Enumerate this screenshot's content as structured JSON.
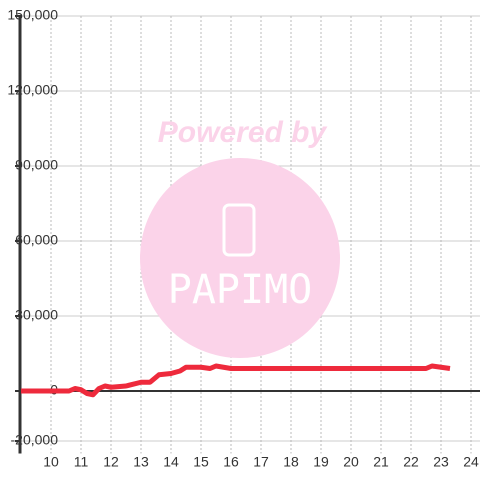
{
  "chart_data": {
    "type": "line",
    "watermark": {
      "text": "Powered by",
      "logo": "PAPIMO"
    },
    "x": [
      9,
      10,
      10.6,
      10.8,
      11,
      11.2,
      11.4,
      11.6,
      11.8,
      12,
      12.5,
      13,
      13.3,
      13.6,
      14,
      14.3,
      14.5,
      15,
      15.3,
      15.5,
      16,
      17,
      18,
      19,
      20,
      21,
      22,
      22.5,
      22.7,
      23,
      23.3
    ],
    "series": [
      {
        "color": "#ee2a3c",
        "values": [
          0,
          0,
          0,
          1000,
          500,
          -1000,
          -1500,
          1000,
          2000,
          1500,
          2000,
          3500,
          3500,
          6500,
          7000,
          8000,
          9500,
          9500,
          9000,
          10000,
          9000,
          9000,
          9000,
          9000,
          9000,
          9000,
          9000,
          9000,
          10000,
          9500,
          9000
        ]
      }
    ],
    "xlim": [
      9,
      24.3
    ],
    "xticks": [
      10,
      11,
      12,
      13,
      14,
      15,
      16,
      17,
      18,
      19,
      20,
      21,
      22,
      23,
      24
    ],
    "ylim": [
      -25000,
      150000
    ],
    "yticks": [
      {
        "value": 150000,
        "label": "150,000"
      },
      {
        "value": 120000,
        "label": "120,000"
      },
      {
        "value": 90000,
        "label": "90,000"
      },
      {
        "value": 60000,
        "label": "60,000"
      },
      {
        "value": 30000,
        "label": "30,000"
      },
      0,
      {
        "value": -20000,
        "label": "-20,000"
      }
    ],
    "grid": true
  }
}
